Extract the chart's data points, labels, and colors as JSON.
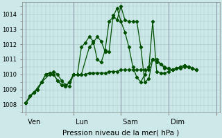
{
  "xlabel": "Pression niveau de la mer( hPa )",
  "bg_color": "#cce8e8",
  "grid_color": "#aacaca",
  "dark_green": "#005000",
  "ylim": [
    1007.5,
    1014.8
  ],
  "yticks": [
    1008,
    1009,
    1010,
    1011,
    1012,
    1013,
    1014
  ],
  "day_x": [
    0,
    12,
    24,
    36,
    48
  ],
  "day_labels": [
    " Ven",
    " Lun",
    " Sam",
    " Dim",
    ""
  ],
  "xlim": [
    -1,
    49
  ],
  "series1_x": [
    0,
    1,
    2,
    3,
    4,
    5,
    6,
    7,
    8,
    9,
    10,
    11,
    12,
    13,
    14,
    15,
    16,
    17,
    18,
    19,
    20,
    21,
    22,
    23,
    24,
    25,
    26,
    27,
    28,
    29,
    30,
    31,
    32,
    33,
    34,
    35,
    36,
    37,
    38,
    39,
    40,
    41,
    42,
    43
  ],
  "series1_y": [
    1008.1,
    1008.6,
    1008.8,
    1009.0,
    1009.5,
    1010.0,
    1010.1,
    1010.0,
    1009.6,
    1009.3,
    1009.2,
    1009.5,
    1010.0,
    1010.0,
    1011.8,
    1012.1,
    1012.5,
    1012.2,
    1011.0,
    1010.8,
    1011.6,
    1013.5,
    1013.8,
    1014.4,
    1013.5,
    1012.8,
    1011.8,
    1010.5,
    1009.8,
    1009.5,
    1010.0,
    1010.5,
    1011.0,
    1010.8,
    1010.7,
    1010.5,
    1010.4,
    1010.3,
    1010.4,
    1010.5,
    1010.6,
    1010.5,
    1010.4,
    1010.3
  ],
  "series2_x": [
    0,
    1,
    2,
    3,
    4,
    5,
    6,
    7,
    8,
    9,
    10,
    11,
    12,
    13,
    14,
    15,
    16,
    17,
    18,
    19,
    20,
    21,
    22,
    23,
    24,
    25,
    26,
    27,
    28,
    29,
    30,
    31,
    32,
    33,
    34,
    35,
    36,
    37,
    38,
    39,
    40,
    41,
    42,
    43
  ],
  "series2_y": [
    1008.1,
    1008.6,
    1008.8,
    1009.0,
    1009.5,
    1010.0,
    1010.1,
    1010.0,
    1009.6,
    1009.3,
    1009.2,
    1009.5,
    1010.0,
    1010.0,
    1010.0,
    1010.0,
    1010.1,
    1010.1,
    1010.1,
    1010.1,
    1010.1,
    1010.2,
    1010.2,
    1010.2,
    1010.3,
    1010.3,
    1010.3,
    1010.3,
    1010.3,
    1010.3,
    1010.3,
    1010.3,
    1013.5,
    1010.2,
    1010.1,
    1010.1,
    1010.2,
    1010.3,
    1010.4,
    1010.4,
    1010.5,
    1010.5,
    1010.4,
    1010.3
  ],
  "series3_x": [
    0,
    2,
    4,
    6,
    7,
    8,
    9,
    10,
    11,
    12,
    14,
    16,
    17,
    18,
    19,
    20,
    21,
    22,
    23,
    24,
    25,
    26,
    27,
    28,
    29,
    30,
    31,
    32,
    33,
    34,
    35,
    36,
    37,
    38,
    39,
    40,
    41,
    42,
    43
  ],
  "series3_y": [
    1008.1,
    1008.8,
    1009.5,
    1010.0,
    1010.2,
    1010.0,
    1009.6,
    1009.3,
    1009.2,
    1010.0,
    1010.0,
    1011.8,
    1012.1,
    1012.5,
    1012.2,
    1011.5,
    1011.5,
    1013.9,
    1013.6,
    1014.5,
    1013.6,
    1013.5,
    1013.5,
    1013.5,
    1011.8,
    1009.5,
    1009.7,
    1011.0,
    1011.0,
    1010.7,
    1010.4,
    1010.4,
    1010.3,
    1010.4,
    1010.5,
    1010.6,
    1010.5,
    1010.4,
    1010.3
  ]
}
